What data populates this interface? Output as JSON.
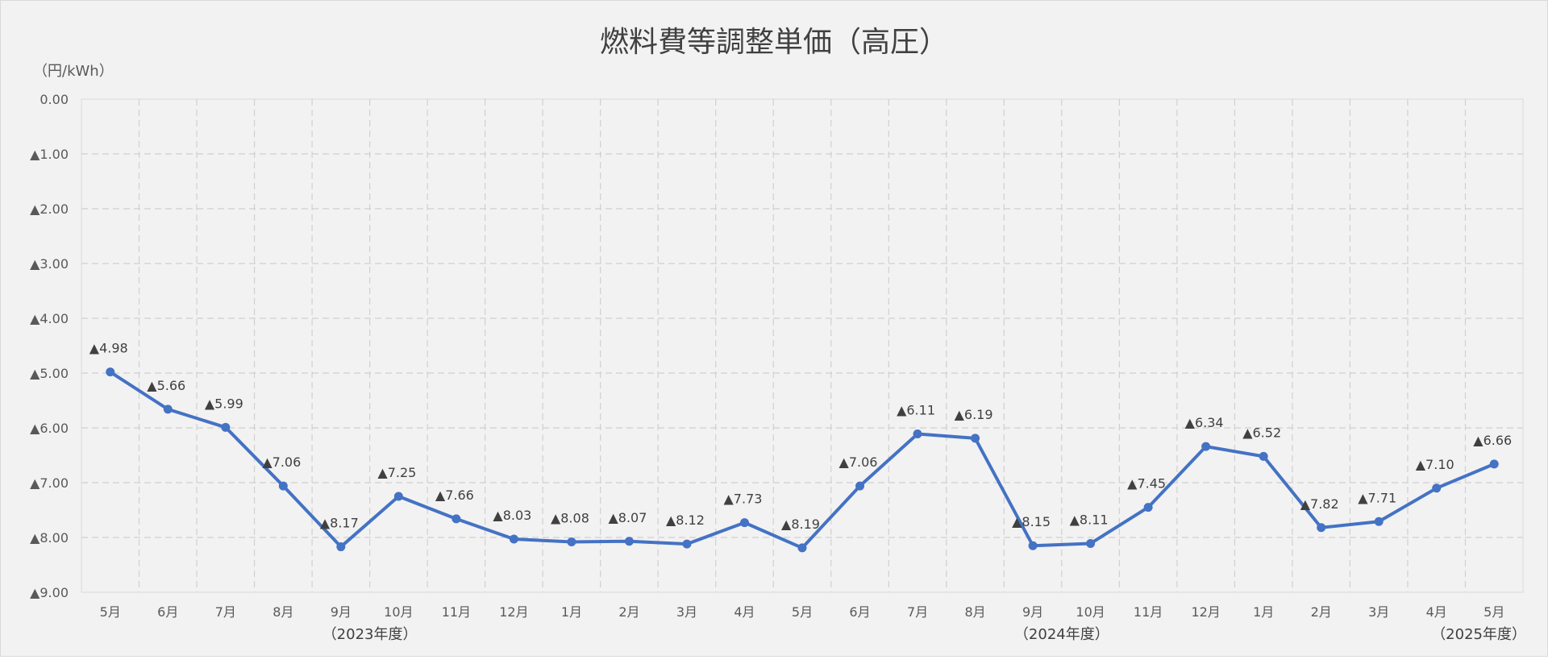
{
  "chart_data": {
    "type": "line",
    "title": "燃料費等調整単価（高圧）",
    "ylabel": "（円/kWh）",
    "ylim": [
      -9,
      0
    ],
    "y_ticks": [
      0,
      -1,
      -2,
      -3,
      -4,
      -5,
      -6,
      -7,
      -8,
      -9
    ],
    "y_tick_labels": [
      "0.00",
      "▲1.00",
      "▲2.00",
      "▲3.00",
      "▲4.00",
      "▲5.00",
      "▲6.00",
      "▲7.00",
      "▲8.00",
      "▲9.00"
    ],
    "categories": [
      "5月",
      "6月",
      "7月",
      "8月",
      "9月",
      "10月",
      "11月",
      "12月",
      "1月",
      "2月",
      "3月",
      "4月",
      "5月",
      "6月",
      "7月",
      "8月",
      "9月",
      "10月",
      "11月",
      "12月",
      "1月",
      "2月",
      "3月",
      "4月",
      "5月"
    ],
    "series": [
      {
        "values": [
          -4.98,
          -5.66,
          -5.99,
          -7.06,
          -8.17,
          -7.25,
          -7.66,
          -8.03,
          -8.08,
          -8.07,
          -8.12,
          -7.73,
          -8.19,
          -7.06,
          -6.11,
          -6.19,
          -8.15,
          -8.11,
          -7.45,
          -6.34,
          -6.52,
          -7.82,
          -7.71,
          -7.1,
          -6.66
        ],
        "color": "#4472c4"
      }
    ],
    "data_labels": [
      "▲4.98",
      "▲5.66",
      "▲5.99",
      "▲7.06",
      "▲8.17",
      "▲7.25",
      "▲7.66",
      "▲8.03",
      "▲8.08",
      "▲8.07",
      "▲8.12",
      "▲7.73",
      "▲8.19",
      "▲7.06",
      "▲6.11",
      "▲6.19",
      "▲8.15",
      "▲8.11",
      "▲7.45",
      "▲6.34",
      "▲6.52",
      "▲7.82",
      "▲7.71",
      "▲7.10",
      "▲6.66"
    ],
    "fiscal_year_labels": [
      {
        "category_index": 4.5,
        "text": "（2023年度）"
      },
      {
        "category_index": 16.5,
        "text": "（2024年度）"
      },
      {
        "category_index": 24,
        "text": "（2025年度）"
      }
    ],
    "grid": true,
    "legend": "none"
  }
}
